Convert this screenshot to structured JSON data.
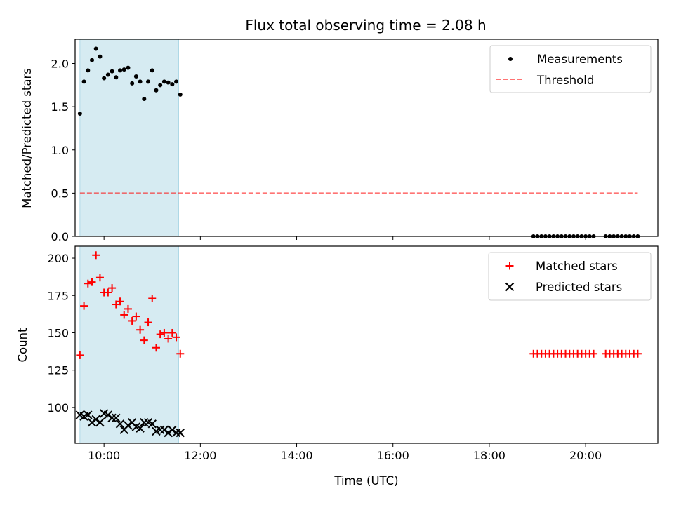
{
  "title": "Flux total observing time = 2.08 h",
  "colors": {
    "shade": "#add8e6",
    "measurement": "#000000",
    "threshold": "#ff0000",
    "matched": "#ff0000",
    "predicted": "#000000"
  },
  "chart_data": [
    {
      "type": "scatter",
      "ylabel": "Matched/Predicted stars",
      "xlim": [
        "09:24",
        "21:30"
      ],
      "ylim": [
        0,
        2.28
      ],
      "yticks": [
        "0.0",
        "0.5",
        "1.0",
        "1.5",
        "2.0"
      ],
      "grid": false,
      "legend_position": "top-right",
      "shaded_interval": [
        "09:30",
        "11:33"
      ],
      "series": [
        {
          "name": "Measurements",
          "marker": "dot",
          "points": [
            [
              "09:30",
              1.42
            ],
            [
              "09:35",
              1.79
            ],
            [
              "09:40",
              1.92
            ],
            [
              "09:45",
              2.04
            ],
            [
              "09:50",
              2.17
            ],
            [
              "09:55",
              2.08
            ],
            [
              "10:00",
              1.83
            ],
            [
              "10:05",
              1.87
            ],
            [
              "10:10",
              1.91
            ],
            [
              "10:15",
              1.84
            ],
            [
              "10:20",
              1.92
            ],
            [
              "10:25",
              1.93
            ],
            [
              "10:30",
              1.95
            ],
            [
              "10:35",
              1.77
            ],
            [
              "10:40",
              1.85
            ],
            [
              "10:45",
              1.79
            ],
            [
              "10:50",
              1.59
            ],
            [
              "10:55",
              1.79
            ],
            [
              "11:00",
              1.92
            ],
            [
              "11:05",
              1.69
            ],
            [
              "11:10",
              1.75
            ],
            [
              "11:15",
              1.79
            ],
            [
              "11:20",
              1.78
            ],
            [
              "11:25",
              1.76
            ],
            [
              "11:30",
              1.79
            ],
            [
              "11:35",
              1.64
            ],
            [
              "18:55",
              0.0
            ],
            [
              "19:00",
              0.0
            ],
            [
              "19:05",
              0.0
            ],
            [
              "19:10",
              0.0
            ],
            [
              "19:15",
              0.0
            ],
            [
              "19:20",
              0.0
            ],
            [
              "19:25",
              0.0
            ],
            [
              "19:30",
              0.0
            ],
            [
              "19:35",
              0.0
            ],
            [
              "19:40",
              0.0
            ],
            [
              "19:45",
              0.0
            ],
            [
              "19:50",
              0.0
            ],
            [
              "19:55",
              0.0
            ],
            [
              "20:00",
              0.0
            ],
            [
              "20:05",
              0.0
            ],
            [
              "20:10",
              0.0
            ],
            [
              "20:25",
              0.0
            ],
            [
              "20:30",
              0.0
            ],
            [
              "20:35",
              0.0
            ],
            [
              "20:40",
              0.0
            ],
            [
              "20:45",
              0.0
            ],
            [
              "20:50",
              0.0
            ],
            [
              "20:55",
              0.0
            ],
            [
              "21:00",
              0.0
            ],
            [
              "21:05",
              0.0
            ]
          ]
        },
        {
          "name": "Threshold",
          "style": "dashed",
          "line": [
            [
              "09:30",
              0.5
            ],
            [
              "21:05",
              0.5
            ]
          ]
        }
      ]
    },
    {
      "type": "scatter",
      "xlabel": "Time (UTC)",
      "ylabel": "Count",
      "xlim": [
        "09:24",
        "21:30"
      ],
      "ylim": [
        76,
        208
      ],
      "yticks": [
        "100",
        "125",
        "150",
        "175",
        "200"
      ],
      "xticks": [
        "10:00",
        "12:00",
        "14:00",
        "16:00",
        "18:00",
        "20:00"
      ],
      "grid": false,
      "legend_position": "top-right",
      "shaded_interval": [
        "09:30",
        "11:33"
      ],
      "series": [
        {
          "name": "Matched stars",
          "marker": "plus",
          "points": [
            [
              "09:30",
              135
            ],
            [
              "09:35",
              168
            ],
            [
              "09:40",
              183
            ],
            [
              "09:45",
              184
            ],
            [
              "09:50",
              202
            ],
            [
              "09:55",
              187
            ],
            [
              "10:00",
              177
            ],
            [
              "10:05",
              177
            ],
            [
              "10:10",
              180
            ],
            [
              "10:15",
              169
            ],
            [
              "10:20",
              171
            ],
            [
              "10:25",
              162
            ],
            [
              "10:30",
              166
            ],
            [
              "10:35",
              158
            ],
            [
              "10:40",
              161
            ],
            [
              "10:45",
              152
            ],
            [
              "10:50",
              145
            ],
            [
              "10:55",
              157
            ],
            [
              "11:00",
              173
            ],
            [
              "11:05",
              140
            ],
            [
              "11:10",
              149
            ],
            [
              "11:15",
              150
            ],
            [
              "11:20",
              146
            ],
            [
              "11:25",
              150
            ],
            [
              "11:30",
              147
            ],
            [
              "11:35",
              136
            ],
            [
              "18:55",
              136
            ],
            [
              "19:00",
              136
            ],
            [
              "19:05",
              136
            ],
            [
              "19:10",
              136
            ],
            [
              "19:15",
              136
            ],
            [
              "19:20",
              136
            ],
            [
              "19:25",
              136
            ],
            [
              "19:30",
              136
            ],
            [
              "19:35",
              136
            ],
            [
              "19:40",
              136
            ],
            [
              "19:45",
              136
            ],
            [
              "19:50",
              136
            ],
            [
              "19:55",
              136
            ],
            [
              "20:00",
              136
            ],
            [
              "20:05",
              136
            ],
            [
              "20:10",
              136
            ],
            [
              "20:25",
              136
            ],
            [
              "20:30",
              136
            ],
            [
              "20:35",
              136
            ],
            [
              "20:40",
              136
            ],
            [
              "20:45",
              136
            ],
            [
              "20:50",
              136
            ],
            [
              "20:55",
              136
            ],
            [
              "21:00",
              136
            ],
            [
              "21:05",
              136
            ]
          ]
        },
        {
          "name": "Predicted stars",
          "marker": "x",
          "points": [
            [
              "09:30",
              95
            ],
            [
              "09:35",
              94
            ],
            [
              "09:40",
              95
            ],
            [
              "09:45",
              90
            ],
            [
              "09:50",
              92
            ],
            [
              "09:55",
              90
            ],
            [
              "10:00",
              96
            ],
            [
              "10:05",
              95
            ],
            [
              "10:10",
              93
            ],
            [
              "10:15",
              93
            ],
            [
              "10:20",
              89
            ],
            [
              "10:25",
              85
            ],
            [
              "10:30",
              88
            ],
            [
              "10:35",
              90
            ],
            [
              "10:40",
              87
            ],
            [
              "10:45",
              86
            ],
            [
              "10:50",
              90
            ],
            [
              "10:55",
              90
            ],
            [
              "11:00",
              89
            ],
            [
              "11:05",
              84
            ],
            [
              "11:10",
              85
            ],
            [
              "11:15",
              85
            ],
            [
              "11:20",
              83
            ],
            [
              "11:25",
              85
            ],
            [
              "11:30",
              83
            ],
            [
              "11:35",
              83
            ]
          ]
        }
      ]
    }
  ]
}
